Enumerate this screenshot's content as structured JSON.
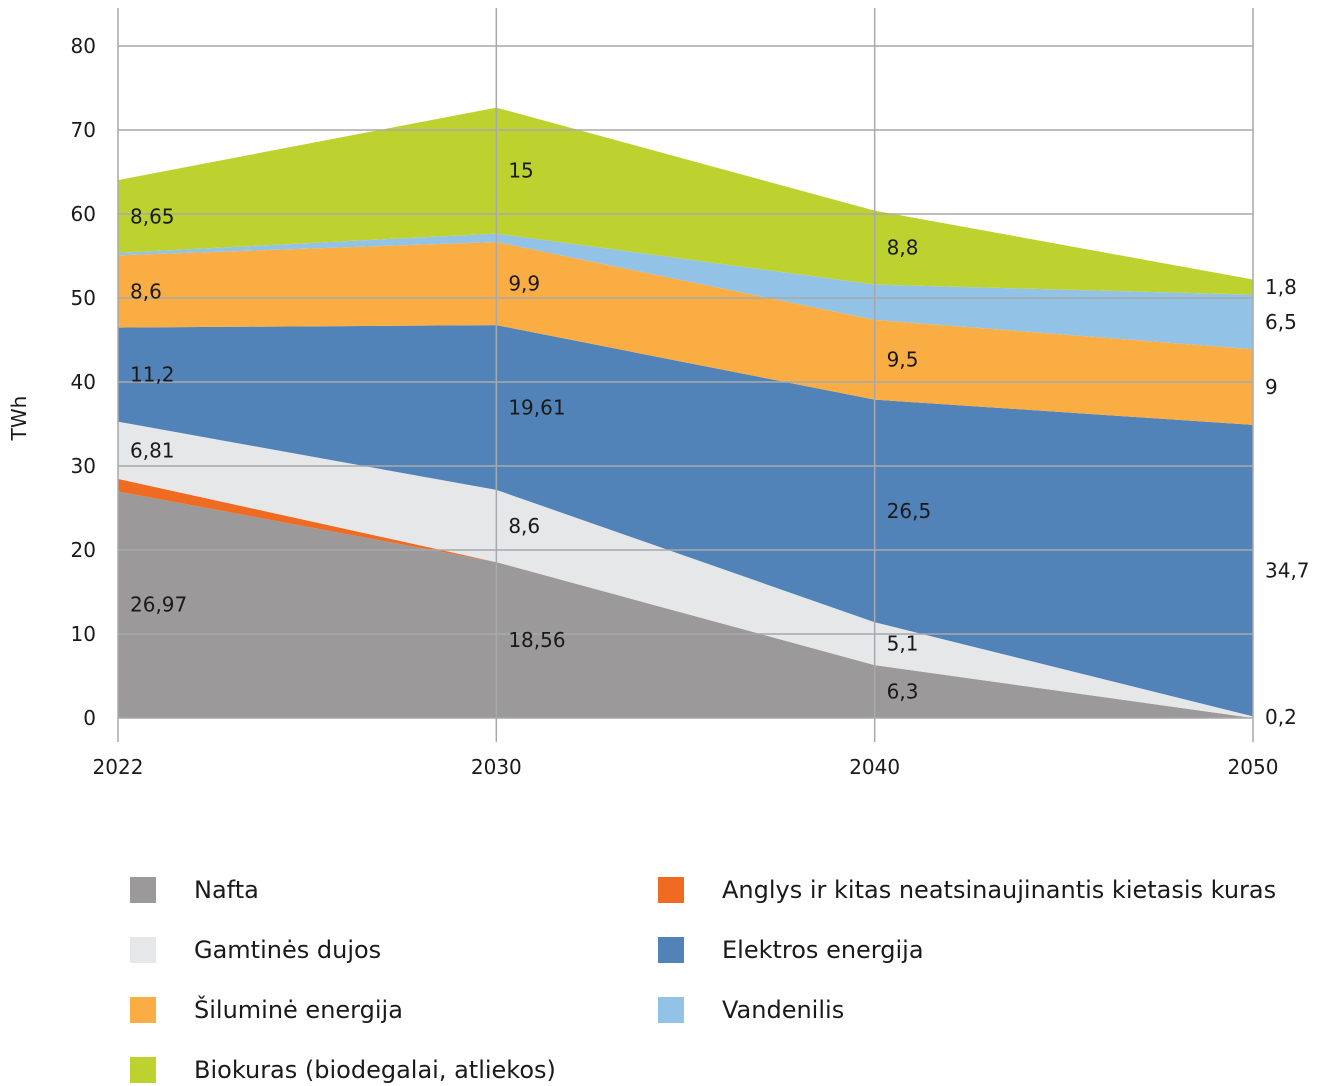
{
  "chart_data": {
    "type": "area",
    "stacked": true,
    "x": [
      "2022",
      "2030",
      "2040",
      "2050"
    ],
    "ylabel": "TWh",
    "xlabel": "",
    "ylim": [
      0,
      80
    ],
    "yticks": [
      "0",
      "10",
      "20",
      "30",
      "40",
      "50",
      "60",
      "70",
      "80"
    ],
    "grid": true,
    "legend_position": "bottom",
    "series": [
      {
        "name": "Nafta",
        "values": [
          26.97,
          18.56,
          6.3,
          0
        ],
        "color": "#9b999a",
        "labels": [
          "26,97",
          "18,56",
          "6,3",
          ""
        ]
      },
      {
        "name": "Anglys ir kitas neatsinaujinantis kietasis kuras",
        "values": [
          1.5,
          0,
          0,
          0
        ],
        "color": "#f06b22",
        "labels": [
          "",
          "",
          "",
          ""
        ]
      },
      {
        "name": "Gamtinės dujos",
        "values": [
          6.81,
          8.6,
          5.1,
          0.2
        ],
        "color": "#e6e7e8",
        "labels": [
          "6,81",
          "8,6",
          "5,1",
          "0,2"
        ]
      },
      {
        "name": "Elektros energija",
        "values": [
          11.2,
          19.61,
          26.5,
          34.7
        ],
        "color": "#5283b8",
        "labels": [
          "11,2",
          "19,61",
          "26,5",
          "34,7"
        ]
      },
      {
        "name": "Šiluminė energija",
        "values": [
          8.6,
          9.9,
          9.5,
          9
        ],
        "color": "#f9ad42",
        "labels": [
          "8,6",
          "9,9",
          "9,5",
          "9"
        ]
      },
      {
        "name": "Vandenilis",
        "values": [
          0.3,
          1.0,
          4.2,
          6.5
        ],
        "color": "#92c3e6",
        "labels": [
          "",
          "",
          "",
          "6,5"
        ]
      },
      {
        "name": "Biokuras (biodegalai, atliekos)",
        "values": [
          8.65,
          15,
          8.8,
          1.8
        ],
        "color": "#bed22f",
        "labels": [
          "8,65",
          "15",
          "8,8",
          "1,8"
        ]
      }
    ]
  },
  "legend": [
    {
      "label": "Nafta",
      "color": "#9b999a"
    },
    {
      "label": "Anglys ir kitas neatsinaujinantis kietasis kuras",
      "color": "#f06b22"
    },
    {
      "label": "Gamtinės dujos",
      "color": "#e6e7e8"
    },
    {
      "label": "Elektros energija",
      "color": "#5283b8"
    },
    {
      "label": "Šiluminė energija",
      "color": "#f9ad42"
    },
    {
      "label": "Vandenilis",
      "color": "#92c3e6"
    },
    {
      "label": "Biokuras (biodegalai, atliekos)",
      "color": "#bed22f"
    }
  ]
}
